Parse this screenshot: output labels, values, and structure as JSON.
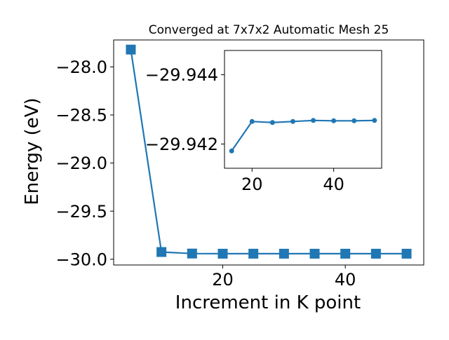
{
  "chart_data": [
    {
      "type": "line",
      "title": "Converged at 7x7x2 Automatic Mesh 25",
      "xlabel": "Increment in K point",
      "ylabel": "Energy (eV)",
      "marker": "square",
      "color": "#1f77b4",
      "grid": false,
      "xlim": [
        2.2,
        52.8
      ],
      "ylim": [
        -30.06,
        -27.72
      ],
      "xticks": [
        20,
        40
      ],
      "xtick_labels": [
        "20",
        "40"
      ],
      "yticks": [
        -30.0,
        -29.5,
        -29.0,
        -28.5,
        -28.0
      ],
      "ytick_labels": [
        "−30.0",
        "−29.5",
        "−29.0",
        "−28.5",
        "−28.0"
      ],
      "x": [
        5,
        10,
        15,
        20,
        25,
        30,
        35,
        40,
        45,
        50
      ],
      "y": [
        -27.82,
        -29.925,
        -29.941,
        -29.9426,
        -29.9425,
        -29.9426,
        -29.9426,
        -29.9426,
        -29.9426,
        -29.9426
      ]
    },
    {
      "type": "line",
      "title": "",
      "xlabel": "",
      "ylabel": "",
      "marker": "circle",
      "color": "#1f77b4",
      "grid": false,
      "xlim": [
        13.25,
        51.75
      ],
      "ylim": [
        -29.9413,
        -29.9447
      ],
      "xticks": [
        20,
        40
      ],
      "xtick_labels": [
        "20",
        "40"
      ],
      "yticks": [
        -29.944,
        -29.942
      ],
      "ytick_labels": [
        "−29.944",
        "−29.942"
      ],
      "x": [
        15,
        20,
        25,
        30,
        35,
        40,
        45,
        50
      ],
      "y": [
        -29.9418,
        -29.94265,
        -29.94262,
        -29.94265,
        -29.94268,
        -29.94267,
        -29.94267,
        -29.94268
      ]
    }
  ]
}
